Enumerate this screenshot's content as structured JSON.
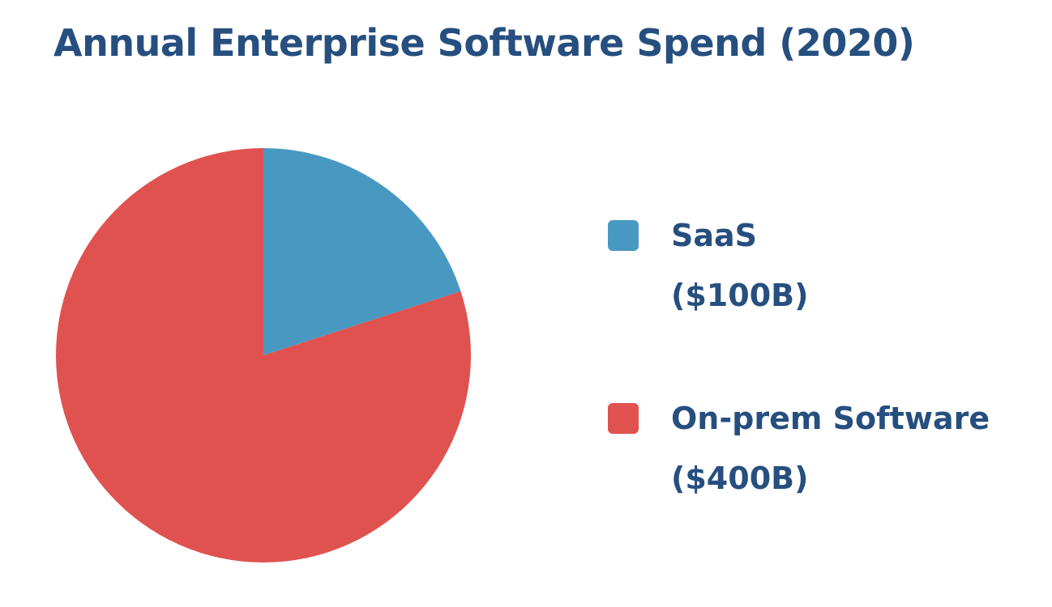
{
  "chart_data": {
    "type": "pie",
    "title": "Annual Enterprise Software Spend (2020)",
    "slices": [
      {
        "label": "SaaS",
        "value_label": "($100B)",
        "value": 100,
        "color": "#4899c2"
      },
      {
        "label": "On-prem Software",
        "value_label": "($400B)",
        "value": 400,
        "color": "#e0524f"
      }
    ],
    "start_angle_deg": 0,
    "direction": "clockwise",
    "legend_position": "right"
  }
}
